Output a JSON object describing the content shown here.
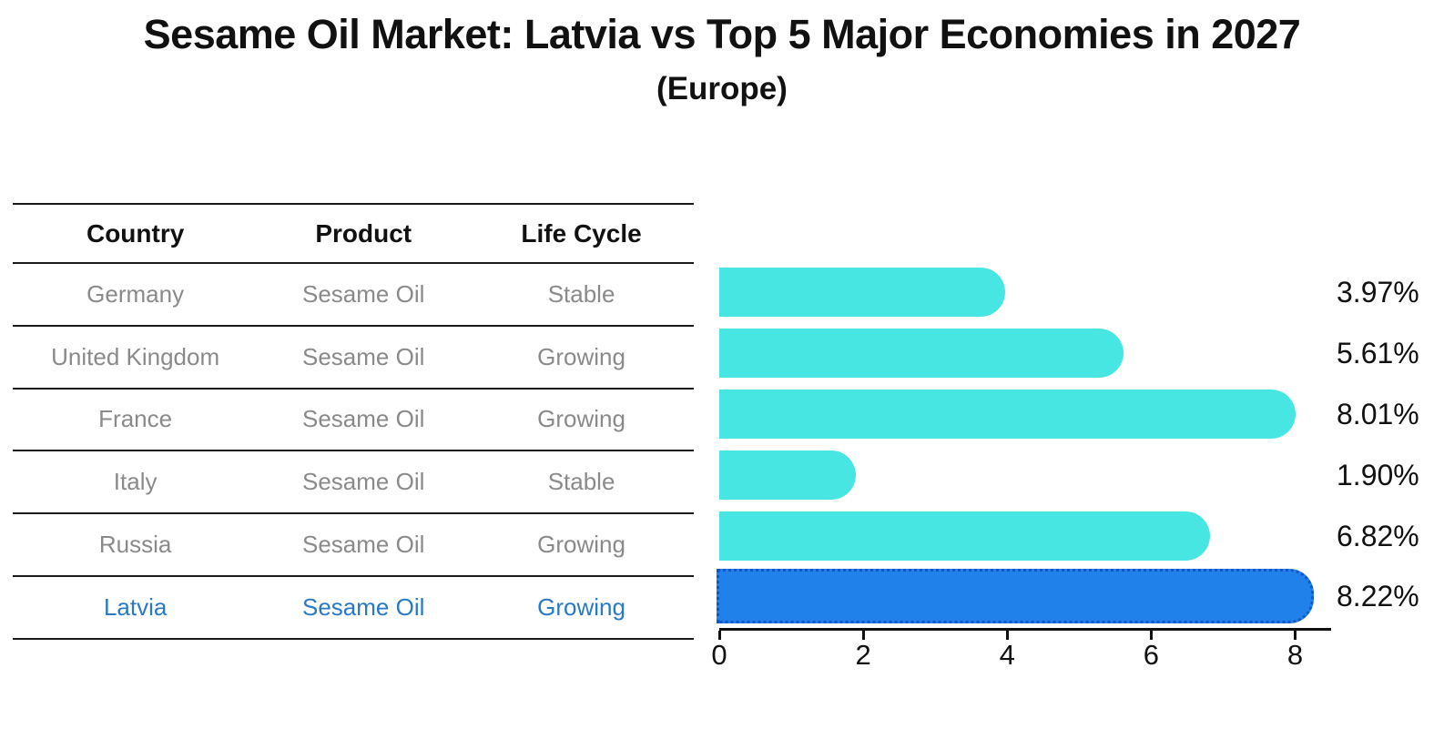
{
  "title": "Sesame Oil Market: Latvia vs Top 5 Major Economies in 2027",
  "subtitle": "(Europe)",
  "table": {
    "headers": [
      "Country",
      "Product",
      "Life Cycle"
    ],
    "rows": [
      {
        "country": "Germany",
        "product": "Sesame Oil",
        "life_cycle": "Stable",
        "highlighted": false
      },
      {
        "country": "United Kingdom",
        "product": "Sesame Oil",
        "life_cycle": "Growing",
        "highlighted": false
      },
      {
        "country": "France",
        "product": "Sesame Oil",
        "life_cycle": "Growing",
        "highlighted": false
      },
      {
        "country": "Italy",
        "product": "Sesame Oil",
        "life_cycle": "Stable",
        "highlighted": false
      },
      {
        "country": "Russia",
        "product": "Sesame Oil",
        "life_cycle": "Growing",
        "highlighted": false
      },
      {
        "country": "Latvia",
        "product": "Sesame Oil",
        "life_cycle": "Growing",
        "highlighted": true
      }
    ]
  },
  "chart_data": {
    "type": "bar",
    "orientation": "horizontal",
    "title": "Sesame Oil Market: Latvia vs Top 5 Major Economies in 2027 (Europe)",
    "categories": [
      "Germany",
      "United Kingdom",
      "France",
      "Italy",
      "Russia",
      "Latvia"
    ],
    "values": [
      3.97,
      5.61,
      8.01,
      1.9,
      6.82,
      8.22
    ],
    "bar_labels": [
      "3.97%",
      "5.61%",
      "8.01%",
      "1.90%",
      "6.82%",
      "8.22%"
    ],
    "xticks": [
      "0",
      "2",
      "4",
      "6",
      "8"
    ],
    "xtick_values": [
      0,
      2,
      4,
      6,
      8
    ],
    "xlim": [
      0,
      8.5
    ],
    "grid": false,
    "legend": false,
    "highlight_category": "Latvia",
    "bar_color": "#48E6E3",
    "highlight_bar_color": "#2181EA",
    "highlight_edge_color": "#1057C8"
  },
  "colors": {
    "header_text": "#111111",
    "row_text": "#8a8a8a",
    "highlight_text": "#2979C9",
    "table_line": "#1a1a1a",
    "axis": "#111111"
  }
}
